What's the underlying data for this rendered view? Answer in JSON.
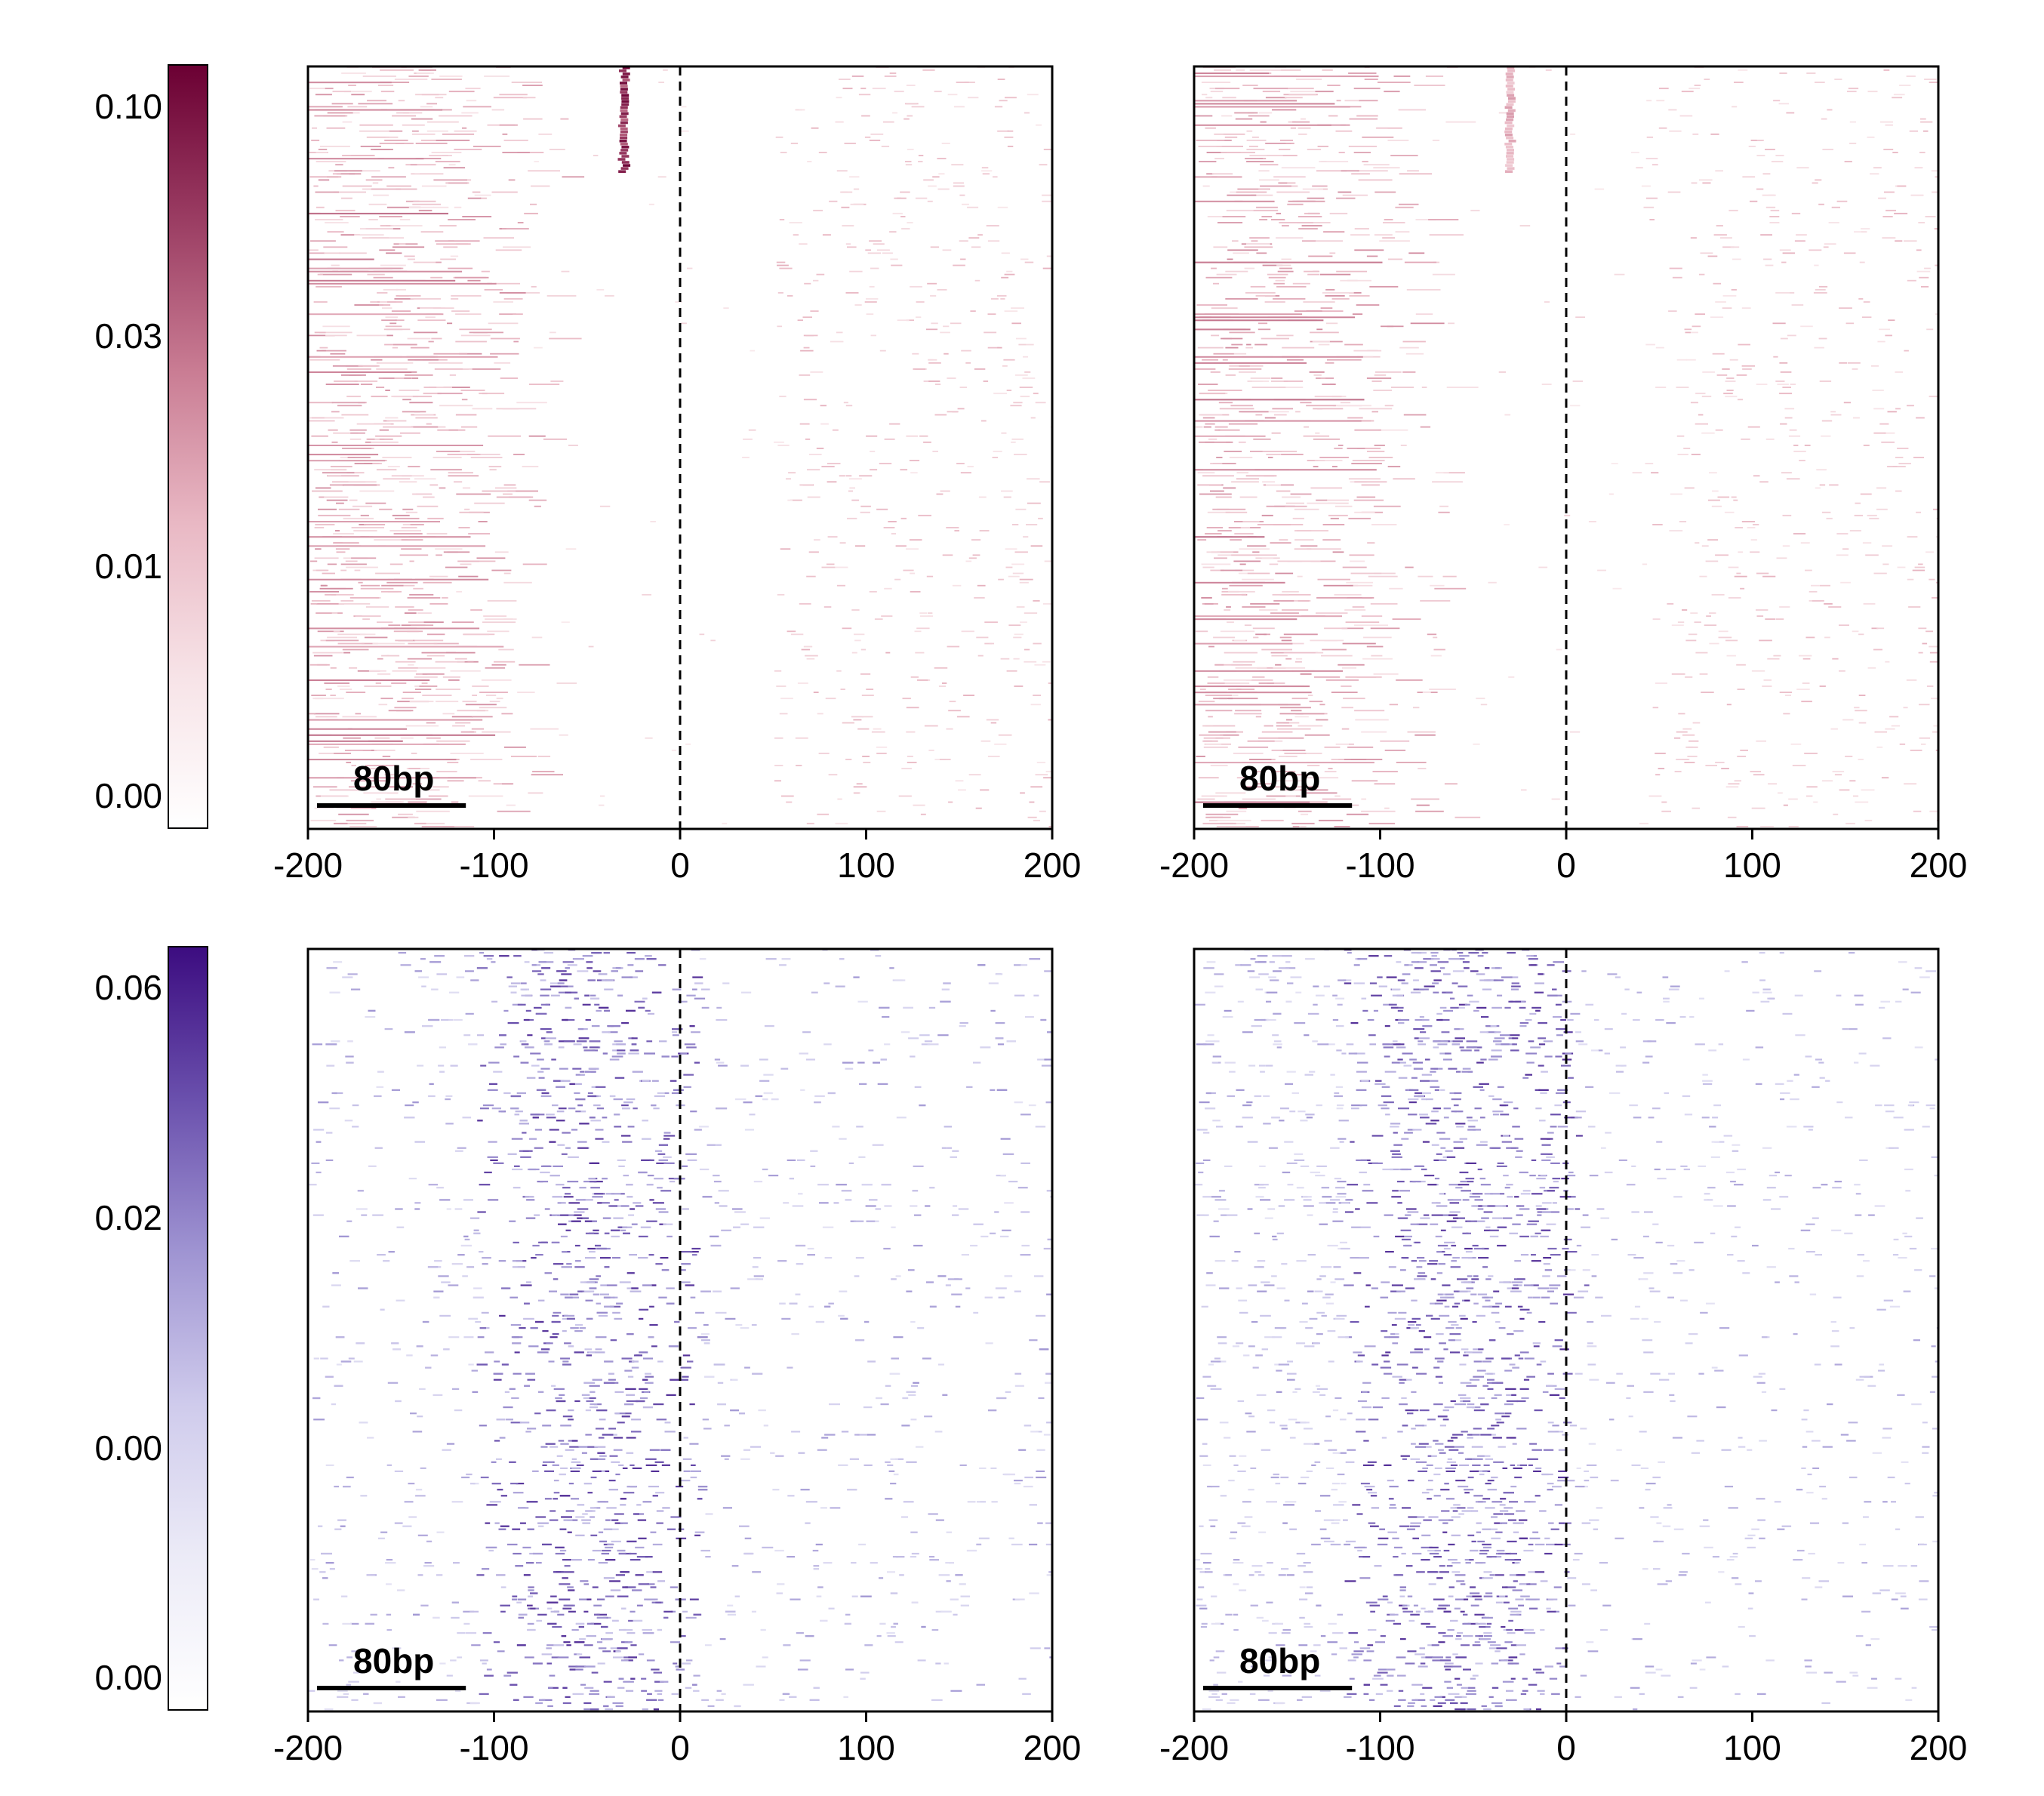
{
  "colorbars": [
    {
      "scheme": "red",
      "colors": [
        "#ffffff",
        "#f7e3e7",
        "#e9b8c4",
        "#c97c93",
        "#9a3c62",
        "#6b0033"
      ],
      "tick_labels": [
        "0.10",
        "0.03",
        "0.01",
        "0.00"
      ]
    },
    {
      "scheme": "purple",
      "colors": [
        "#ffffff",
        "#ecebf7",
        "#cfcbec",
        "#9f94d2",
        "#6a50ad",
        "#3c0c80"
      ],
      "tick_labels": [
        "0.06",
        "0.02",
        "0.00",
        "0.00"
      ]
    }
  ],
  "chart_data": [
    {
      "type": "heatmap",
      "row": 0,
      "col": 0,
      "colormap": "red",
      "xlim": [
        -200,
        200
      ],
      "xticks": [
        -200,
        -100,
        0,
        100,
        200
      ],
      "xtick_labels": [
        "-200",
        "-100",
        "0",
        "100",
        "200"
      ],
      "reference_line_x": 0,
      "scale_bar": {
        "label": "80bp",
        "length_bp": 80
      },
      "pattern": {
        "left_band": [
          -200,
          -80
        ],
        "right_band": [
          50,
          200
        ],
        "hotspot_x": -30,
        "hotspot_rows": [
          0,
          0.14
        ]
      }
    },
    {
      "type": "heatmap",
      "row": 0,
      "col": 1,
      "colormap": "red",
      "xlim": [
        -200,
        200
      ],
      "xticks": [
        -200,
        -100,
        0,
        100,
        200
      ],
      "xtick_labels": [
        "-200",
        "-100",
        "0",
        "100",
        "200"
      ],
      "reference_line_x": 0,
      "scale_bar": {
        "label": "80bp",
        "length_bp": 80
      },
      "pattern": {
        "left_band": [
          -200,
          -80
        ],
        "right_band": [
          40,
          200
        ],
        "hotspot_x": -30,
        "hotspot_rows": [
          0,
          0.14
        ]
      }
    },
    {
      "type": "heatmap",
      "row": 1,
      "col": 0,
      "colormap": "purple",
      "xlim": [
        -200,
        200
      ],
      "xticks": [
        -200,
        -100,
        0,
        100,
        200
      ],
      "xtick_labels": [
        "-200",
        "-100",
        "0",
        "100",
        "200"
      ],
      "reference_line_x": 0,
      "scale_bar": {
        "label": "80bp",
        "length_bp": 80
      },
      "pattern": {
        "dense_center": -50,
        "dense_width": 60,
        "spread": [
          -200,
          200
        ]
      }
    },
    {
      "type": "heatmap",
      "row": 1,
      "col": 1,
      "colormap": "purple",
      "xlim": [
        -200,
        200
      ],
      "xticks": [
        -200,
        -100,
        0,
        100,
        200
      ],
      "xtick_labels": [
        "-200",
        "-100",
        "0",
        "100",
        "200"
      ],
      "reference_line_x": 0,
      "scale_bar": {
        "label": "80bp",
        "length_bp": 80
      },
      "pattern": {
        "dense_center": -55,
        "dense_width": 65,
        "spread": [
          -200,
          0
        ]
      }
    }
  ]
}
